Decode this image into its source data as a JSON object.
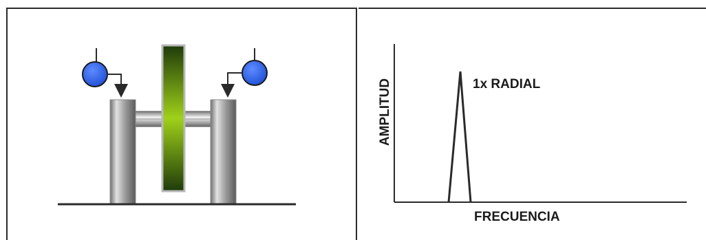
{
  "diagram": {
    "machine": {
      "components": [
        "left-bearing",
        "right-bearing",
        "shaft",
        "rotor-disc",
        "base-line",
        "left-sensor",
        "right-sensor"
      ]
    },
    "spectrum": {
      "peak_label": "1x RADIAL",
      "xlabel": "FRECUENCIA",
      "ylabel": "AMPLITUD"
    }
  },
  "colors": {
    "sensor": "#2f63e6",
    "rotor_mid": "#9fd11a",
    "rotor_dark": "#1f3a0a",
    "bearing_light": "#e2e2e2",
    "bearing_dark": "#6f6f6f",
    "line": "#2a2a2a"
  }
}
